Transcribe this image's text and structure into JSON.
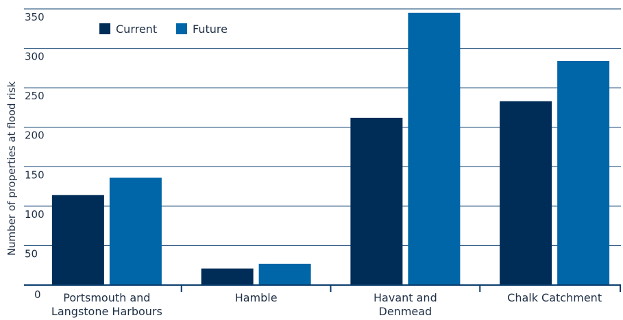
{
  "chart_data": {
    "type": "bar",
    "title": "",
    "xlabel": "",
    "ylabel": "Number of properties at flood risk",
    "ylim": [
      0,
      350
    ],
    "yticks": [
      0,
      50,
      100,
      150,
      200,
      250,
      300,
      350
    ],
    "grid": true,
    "legend_position": "top-left",
    "categories": [
      [
        "Portsmouth and",
        "Langstone Harbours"
      ],
      [
        "Hamble"
      ],
      [
        "Havant and",
        "Denmead"
      ],
      [
        "Chalk Catchment"
      ]
    ],
    "series": [
      {
        "name": "Current",
        "color": "#002d57",
        "values": [
          114,
          21,
          212,
          233
        ]
      },
      {
        "name": "Future",
        "color": "#0066a8",
        "values": [
          136,
          27,
          345,
          284
        ]
      }
    ]
  }
}
